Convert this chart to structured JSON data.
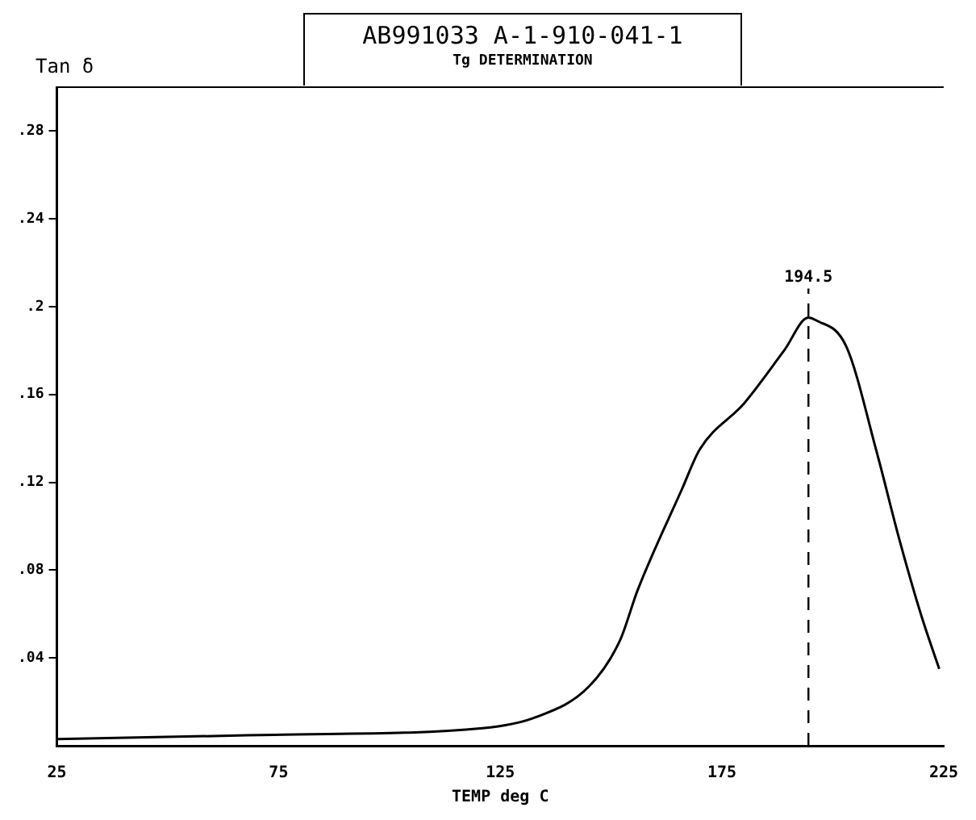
{
  "chart_data": {
    "type": "line",
    "title": "AB991033 A-1-910-041-1",
    "subtitle": "Tg DETERMINATION",
    "xlabel": "TEMP deg C",
    "ylabel": "Tan δ",
    "x": [
      25,
      74,
      121,
      133,
      145,
      152,
      156,
      166,
      170,
      180,
      189,
      194.5,
      196,
      203,
      210,
      215,
      220,
      224
    ],
    "series": [
      {
        "color": "#000000",
        "values": [
          0.003,
          0.005,
          0.008,
          0.013,
          0.027,
          0.048,
          0.071,
          0.117,
          0.135,
          0.156,
          0.18,
          0.195,
          0.194,
          0.182,
          0.133,
          0.094,
          0.059,
          0.035
        ]
      }
    ],
    "xlim": [
      25,
      225
    ],
    "xticks": [
      25,
      75,
      125,
      175,
      225
    ],
    "ylim": [
      0,
      0.3
    ],
    "yticks": [
      {
        "value": 0.04,
        "label": ".04"
      },
      {
        "value": 0.08,
        "label": ".08"
      },
      {
        "value": 0.12,
        "label": ".12"
      },
      {
        "value": 0.16,
        "label": ".16"
      },
      {
        "value": 0.2,
        "label": ".2"
      },
      {
        "value": 0.24,
        "label": ".24"
      },
      {
        "value": 0.28,
        "label": ".28"
      }
    ],
    "ref_lines": [
      {
        "axis": "x",
        "value": 194.5,
        "label": "194.5",
        "line_style": "dashed"
      }
    ],
    "grid": false,
    "legend": false,
    "marker": "none",
    "line_style": "solid"
  }
}
